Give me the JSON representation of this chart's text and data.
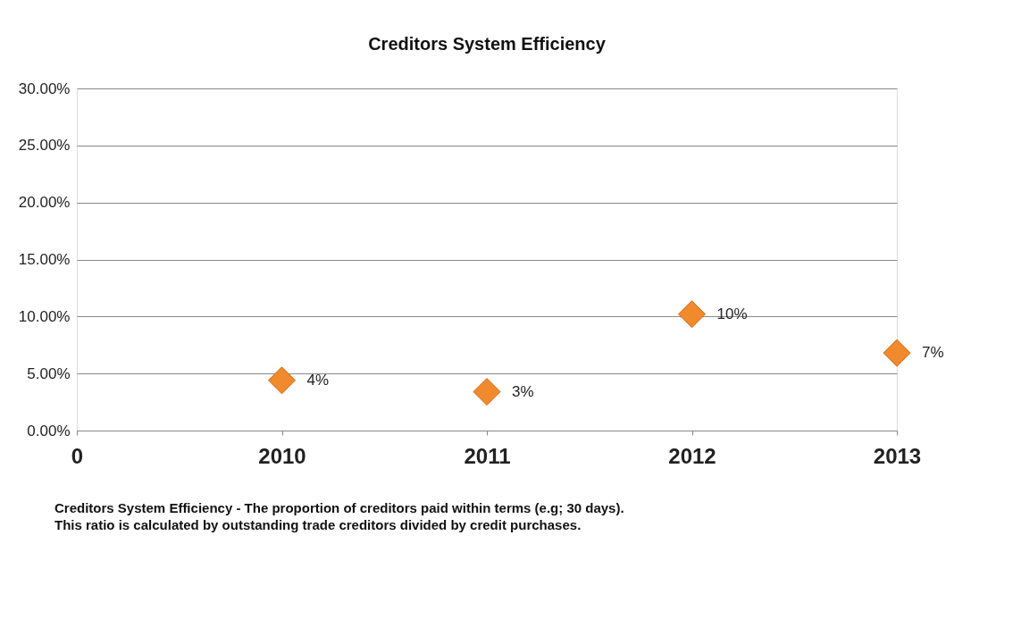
{
  "chart_data": {
    "type": "scatter",
    "title": "Creditors System Efficiency",
    "categories": [
      "0",
      "2010",
      "2011",
      "2012",
      "2013"
    ],
    "series": [
      {
        "color": "#f08a2c",
        "values": [
          null,
          4.4,
          3.4,
          10.2,
          6.8
        ],
        "value_labels": [
          null,
          "4%",
          "3%",
          "10%",
          "7%"
        ]
      }
    ],
    "ylim": [
      0,
      30
    ],
    "yticks": [
      {
        "value": 0,
        "label": "0.00%"
      },
      {
        "value": 5,
        "label": "5.00%"
      },
      {
        "value": 10,
        "label": "10.00%"
      },
      {
        "value": 15,
        "label": "15.00%"
      },
      {
        "value": 20,
        "label": "20.00%"
      },
      {
        "value": 25,
        "label": "25.00%"
      },
      {
        "value": 30,
        "label": "30.00%"
      }
    ],
    "grid": "y",
    "marker": "diamond",
    "annotations": [
      "Creditors System Efficiency  - The proportion of creditors paid within terms (e.g; 30 days). This ratio is calculated by outstanding trade creditors divided by credit purchases."
    ]
  }
}
